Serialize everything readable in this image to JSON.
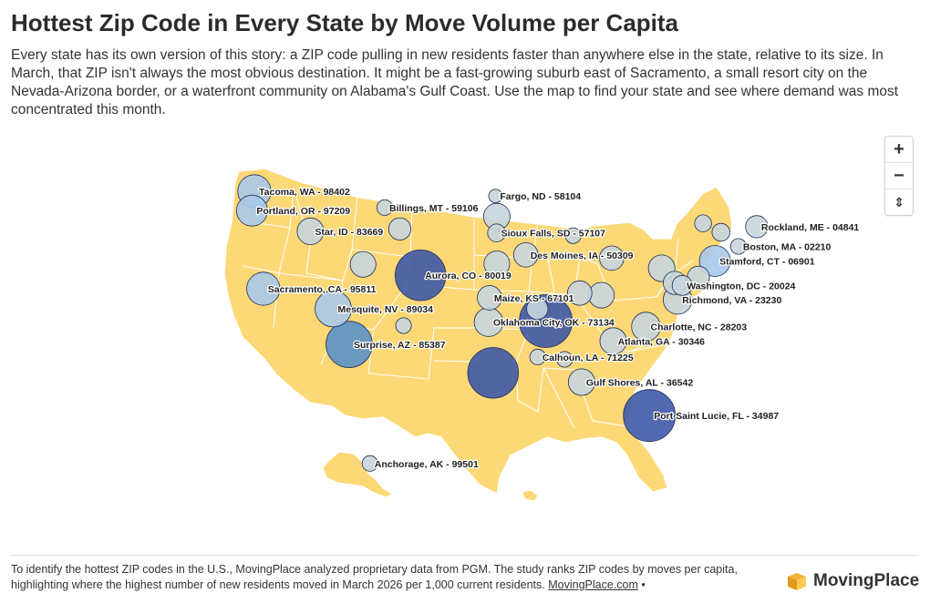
{
  "header": {
    "title": "Hottest Zip Code in Every State by Move Volume per Capita",
    "subtitle": "Every state has its own version of this story: a ZIP code pulling in new residents faster than anywhere else in the state, relative to its size. In March, that ZIP isn't always the most obvious destination. It might be a fast-growing suburb east of Sacramento, a small resort city on the Nevada-Arizona border, or a waterfront community on Alabama's Gulf Coast. Use the map to find your state and see where demand was most concentrated this month."
  },
  "controls": {
    "zoom_in": "+",
    "zoom_out": "−",
    "reset": "⇕"
  },
  "colors": {
    "land": "#fdd876",
    "border": "#ffffff",
    "bubble_light": "#c7d5dd",
    "bubble_pale_blue": "#a9c9ea",
    "bubble_mid_blue": "#5a91c8",
    "bubble_dark": "#3f59a8"
  },
  "bubbles": [
    {
      "label": "Tacoma, WA - 98402",
      "lon": -122.44,
      "lat": 47.25,
      "value": 0.55
    },
    {
      "label": "Portland, OR - 97209",
      "lon": -122.69,
      "lat": 45.53,
      "value": 0.5
    },
    {
      "label": "Star, ID - 83669",
      "lon": -116.49,
      "lat": 43.69,
      "value": 0.4
    },
    {
      "label": "Billings, MT - 59106",
      "lon": -108.6,
      "lat": 45.8,
      "value": 0.15
    },
    {
      "label": "Fargo, ND - 58104",
      "lon": -96.84,
      "lat": 46.83,
      "value": 0.1
    },
    {
      "label": "Sacramento, CA - 95811",
      "lon": -121.49,
      "lat": 38.58,
      "value": 0.55
    },
    {
      "label": "Mesquite, NV - 89034",
      "lon": -114.07,
      "lat": 36.8,
      "value": 0.62
    },
    {
      "label": "Surprise, AZ - 85387",
      "lon": -112.37,
      "lat": 33.63,
      "value": 0.85
    },
    {
      "label": "Aurora, CO - 80019",
      "lon": -104.8,
      "lat": 39.78,
      "value": 0.95
    },
    {
      "label": "Sioux Falls, SD - 57107",
      "lon": -96.73,
      "lat": 43.55,
      "value": 0.2
    },
    {
      "label": "Des Moines, IA - 50309",
      "lon": -93.62,
      "lat": 41.59,
      "value": 0.35
    },
    {
      "label": "Maize, KS - 67101",
      "lon": -97.47,
      "lat": 37.78,
      "value": 0.35
    },
    {
      "label": "Oklahoma City, OK - 73134",
      "lon": -97.57,
      "lat": 35.61,
      "value": 0.45
    },
    {
      "label": "Calhoun, LA - 71225",
      "lon": -92.36,
      "lat": 32.51,
      "value": 0.15
    },
    {
      "label": "Gulf Shores, AL - 36542",
      "lon": -87.7,
      "lat": 30.27,
      "value": 0.4
    },
    {
      "label": "Atlanta, GA - 30346",
      "lon": -84.34,
      "lat": 33.93,
      "value": 0.4
    },
    {
      "label": "Charlotte, NC - 28203",
      "lon": -80.86,
      "lat": 35.21,
      "value": 0.45
    },
    {
      "label": "Port Saint Lucie, FL - 34987",
      "lon": -80.5,
      "lat": 27.3,
      "value": 0.98
    },
    {
      "label": "Richmond, VA - 23230",
      "lon": -77.5,
      "lat": 37.6,
      "value": 0.45
    },
    {
      "label": "Washington, DC - 20024",
      "lon": -77.02,
      "lat": 38.88,
      "value": 0.25
    },
    {
      "label": "Stamford, CT - 06901",
      "lon": -73.54,
      "lat": 41.05,
      "value": 0.5
    },
    {
      "label": "Boston, MA - 02210",
      "lon": -71.05,
      "lat": 42.35,
      "value": 0.15
    },
    {
      "label": "Rockland, ME - 04841",
      "lon": -69.11,
      "lat": 44.1,
      "value": 0.3
    },
    {
      "label": "Anchorage, AK - 99501",
      "lon": -149.9,
      "lat": 61.22,
      "value": 0.15
    },
    {
      "label": "",
      "lon": -110.9,
      "lat": 40.75,
      "value": 0.38
    },
    {
      "label": "",
      "lon": -107.0,
      "lat": 43.9,
      "value": 0.3
    },
    {
      "label": "",
      "lon": -96.7,
      "lat": 45.0,
      "value": 0.4
    },
    {
      "label": "",
      "lon": -96.7,
      "lat": 40.8,
      "value": 0.38
    },
    {
      "label": "",
      "lon": -91.5,
      "lat": 35.7,
      "value": 1.0
    },
    {
      "label": "",
      "lon": -87.9,
      "lat": 38.2,
      "value": 0.35
    },
    {
      "label": "",
      "lon": -85.6,
      "lat": 38.0,
      "value": 0.38
    },
    {
      "label": "",
      "lon": -88.6,
      "lat": 43.3,
      "value": 0.15
    },
    {
      "label": "",
      "lon": -84.5,
      "lat": 41.3,
      "value": 0.35
    },
    {
      "label": "",
      "lon": -79.2,
      "lat": 40.4,
      "value": 0.4
    },
    {
      "label": "",
      "lon": -74.8,
      "lat": 44.4,
      "value": 0.18
    },
    {
      "label": "",
      "lon": -72.9,
      "lat": 43.6,
      "value": 0.2
    },
    {
      "label": "",
      "lon": -77.8,
      "lat": 39.1,
      "value": 0.32
    },
    {
      "label": "",
      "lon": -75.3,
      "lat": 39.6,
      "value": 0.3
    },
    {
      "label": "",
      "lon": -92.4,
      "lat": 36.8,
      "value": 0.28
    },
    {
      "label": "",
      "lon": -89.5,
      "lat": 32.3,
      "value": 0.15
    },
    {
      "label": "",
      "lon": -106.6,
      "lat": 35.3,
      "value": 0.15
    },
    {
      "label": "",
      "lon": -97.1,
      "lat": 31.1,
      "value": 0.95
    }
  ],
  "footer": {
    "note": "To identify the hottest ZIP codes in the U.S., MovingPlace analyzed proprietary data from PGM. The study ranks ZIP codes by moves per capita, highlighting where the highest number of new residents moved in March 2026 per 1,000 current residents.",
    "link": "MovingPlace.com",
    "suffix": " •",
    "brand": "MovingPlace"
  }
}
